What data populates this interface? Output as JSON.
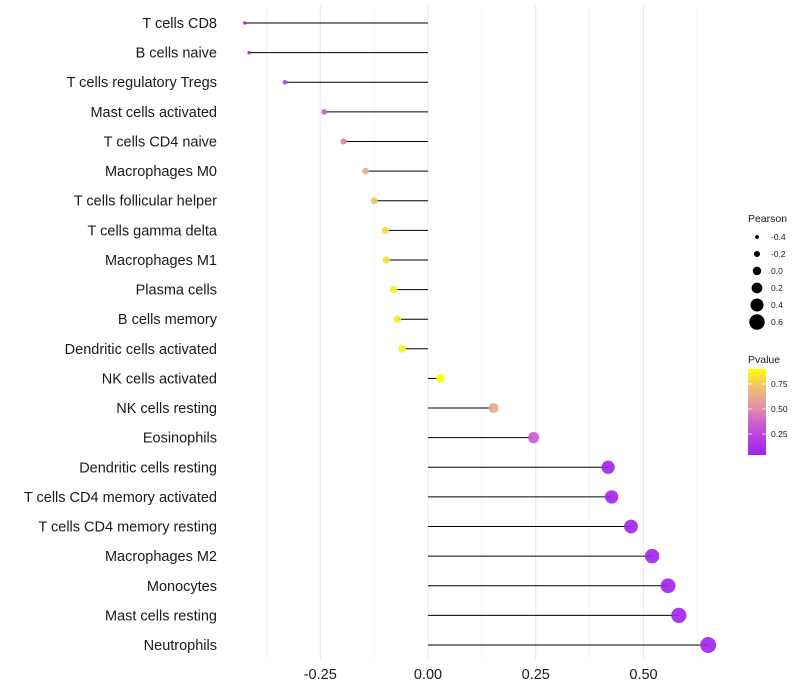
{
  "chart_data": {
    "type": "lollipop",
    "title": "",
    "xlabel": "",
    "ylabel": "",
    "xlim": [
      -0.45,
      0.67
    ],
    "x_ticks": [
      -0.25,
      0.0,
      0.25,
      0.5
    ],
    "x_tick_labels": [
      "-0.25",
      "0.00",
      "0.25",
      "0.50"
    ],
    "x_minor_ticks": [
      -0.375,
      -0.125,
      0.125,
      0.375,
      0.625
    ],
    "grid": true,
    "categories": [
      "T cells CD8",
      "B cells naive",
      "T cells regulatory  Tregs ",
      "Mast cells activated",
      "T cells CD4 naive",
      "Macrophages M0",
      "T cells follicular helper",
      "T cells gamma delta",
      "Macrophages M1",
      "Plasma cells",
      "B cells memory",
      "Dendritic cells activated",
      "NK cells activated",
      "NK cells resting",
      "Eosinophils",
      "Dendritic cells resting",
      "T cells CD4 memory activated",
      "T cells CD4 memory resting",
      "Macrophages M2",
      "Monocytes",
      "Mast cells resting",
      "Neutrophils"
    ],
    "pearson": [
      -0.425,
      -0.415,
      -0.332,
      -0.241,
      -0.196,
      -0.145,
      -0.125,
      -0.099,
      -0.097,
      -0.08,
      -0.071,
      -0.06,
      0.029,
      0.152,
      0.245,
      0.418,
      0.426,
      0.471,
      0.52,
      0.557,
      0.582,
      0.65
    ],
    "pvalue": [
      0.05,
      0.06,
      0.22,
      0.36,
      0.48,
      0.64,
      0.72,
      0.79,
      0.8,
      0.84,
      0.85,
      0.87,
      0.9,
      0.62,
      0.33,
      0.05,
      0.05,
      0.05,
      0.05,
      0.05,
      0.05,
      0.05
    ],
    "legend": {
      "size": {
        "title": "Pearson",
        "labels": [
          "-0.4",
          "-0.2",
          "0.0",
          "0.2",
          "0.4",
          "0.6"
        ],
        "values": [
          -0.4,
          -0.2,
          0.0,
          0.2,
          0.4,
          0.6
        ]
      },
      "color": {
        "title": "Pvalue",
        "ticks": [
          0.75,
          0.5,
          0.25
        ],
        "tick_labels": [
          "0.75",
          "0.50",
          "0.25"
        ],
        "range": [
          0.04,
          0.9
        ],
        "low_color": "#A020F0",
        "high_color": "#FFFF00"
      },
      "position": "right"
    },
    "colors": {
      "grid": "#ebebeb",
      "segment": "#000000",
      "text": "#1a1a1a"
    }
  }
}
